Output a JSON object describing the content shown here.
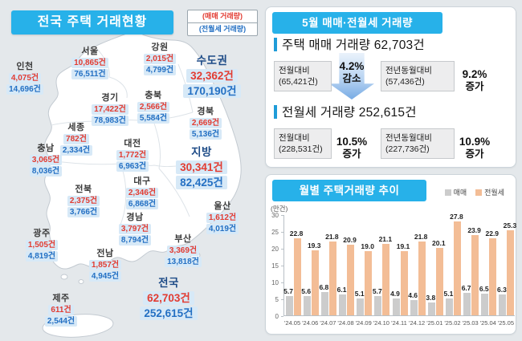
{
  "map_panel": {
    "title": "전국 주택 거래현황",
    "key": {
      "sale": "(매매 거래량)",
      "rent": "(전월세 거래량)"
    },
    "regions": [
      {
        "name": "인천",
        "sale": "4,075건",
        "rent": "14,696건"
      },
      {
        "name": "서울",
        "sale": "10,865건",
        "rent": "76,511건"
      },
      {
        "name": "강원",
        "sale": "2,015건",
        "rent": "4,799건"
      },
      {
        "name": "수도권",
        "sale": "32,362건",
        "rent": "170,190건",
        "emph": true
      },
      {
        "name": "경기",
        "sale": "17,422건",
        "rent": "78,983건"
      },
      {
        "name": "충북",
        "sale": "2,566건",
        "rent": "5,584건"
      },
      {
        "name": "경북",
        "sale": "2,669건",
        "rent": "5,136건"
      },
      {
        "name": "세종",
        "sale": "782건",
        "rent": "2,334건"
      },
      {
        "name": "충남",
        "sale": "3,065건",
        "rent": "8,036건"
      },
      {
        "name": "대전",
        "sale": "1,772건",
        "rent": "6,963건"
      },
      {
        "name": "지방",
        "sale": "30,341건",
        "rent": "82,425건",
        "emph": true
      },
      {
        "name": "대구",
        "sale": "2,346건",
        "rent": "6,868건"
      },
      {
        "name": "전북",
        "sale": "2,375건",
        "rent": "3,766건"
      },
      {
        "name": "울산",
        "sale": "1,612건",
        "rent": "4,019건"
      },
      {
        "name": "경남",
        "sale": "3,797건",
        "rent": "8,794건"
      },
      {
        "name": "광주",
        "sale": "1,505건",
        "rent": "4,819건"
      },
      {
        "name": "부산",
        "sale": "3,369건",
        "rent": "13,818건"
      },
      {
        "name": "전남",
        "sale": "1,857건",
        "rent": "4,945건"
      },
      {
        "name": "전국",
        "sale": "62,703건",
        "rent": "252,615건",
        "emph": true
      },
      {
        "name": "제주",
        "sale": "611건",
        "rent": "2,544건"
      }
    ]
  },
  "summary_panel": {
    "title": "5월 매매·전월세 거래량",
    "sections": [
      {
        "heading": "주택 매매 거래량 62,703건",
        "comparisons": [
          {
            "label": "전월대비",
            "base": "(65,421건)",
            "pct": "4.2%",
            "dir_label": "감소",
            "direction": "down"
          },
          {
            "label": "전년동월대비",
            "base": "(57,436건)",
            "pct": "9.2%",
            "dir_label": "증가",
            "direction": "up"
          }
        ]
      },
      {
        "heading": "전월세 거래량 252,615건",
        "comparisons": [
          {
            "label": "전월대비",
            "base": "(228,531건)",
            "pct": "10.5%",
            "dir_label": "증가",
            "direction": "up"
          },
          {
            "label": "전년동월대비",
            "base": "(227,736건)",
            "pct": "10.9%",
            "dir_label": "증가",
            "direction": "up"
          }
        ]
      }
    ]
  },
  "trend_panel": {
    "title": "월별 주택거래량 추이",
    "unit_label": "(만건)"
  },
  "chart_data": {
    "type": "bar",
    "title": "월별 주택거래량 추이",
    "unit": "만건",
    "categories": [
      "'24.05",
      "'24.06",
      "'24.07",
      "'24.08",
      "'24.09",
      "'24.10",
      "'24.11",
      "'24.12",
      "'25.01",
      "'25.02",
      "'25.03",
      "'25.04",
      "'25.05"
    ],
    "series": [
      {
        "name": "매매",
        "color": "#cccccc",
        "values": [
          5.7,
          5.6,
          6.8,
          6.1,
          5.1,
          5.7,
          4.9,
          4.6,
          3.8,
          5.1,
          6.7,
          6.5,
          6.3
        ]
      },
      {
        "name": "전월세",
        "color": "#f3bd96",
        "values": [
          22.8,
          19.3,
          21.8,
          20.9,
          19.0,
          21.1,
          19.1,
          21.8,
          20.1,
          27.8,
          23.9,
          22.9,
          25.3
        ]
      }
    ],
    "ylim": [
      0,
      30
    ],
    "yticks": [
      0,
      5,
      10,
      15,
      20,
      25,
      30
    ],
    "legend_position": "top-right",
    "grid": false
  },
  "colors": {
    "header_blue": "#27b1e9",
    "sale_red": "#e23c32",
    "rent_blue": "#2470c3",
    "emph_navy": "#1c4a86",
    "number_box_bg": "#d7e9f7",
    "up_arrow": "#e06a5d",
    "down_arrow": "#77abe4",
    "page_bg": "#e4e8eb"
  }
}
